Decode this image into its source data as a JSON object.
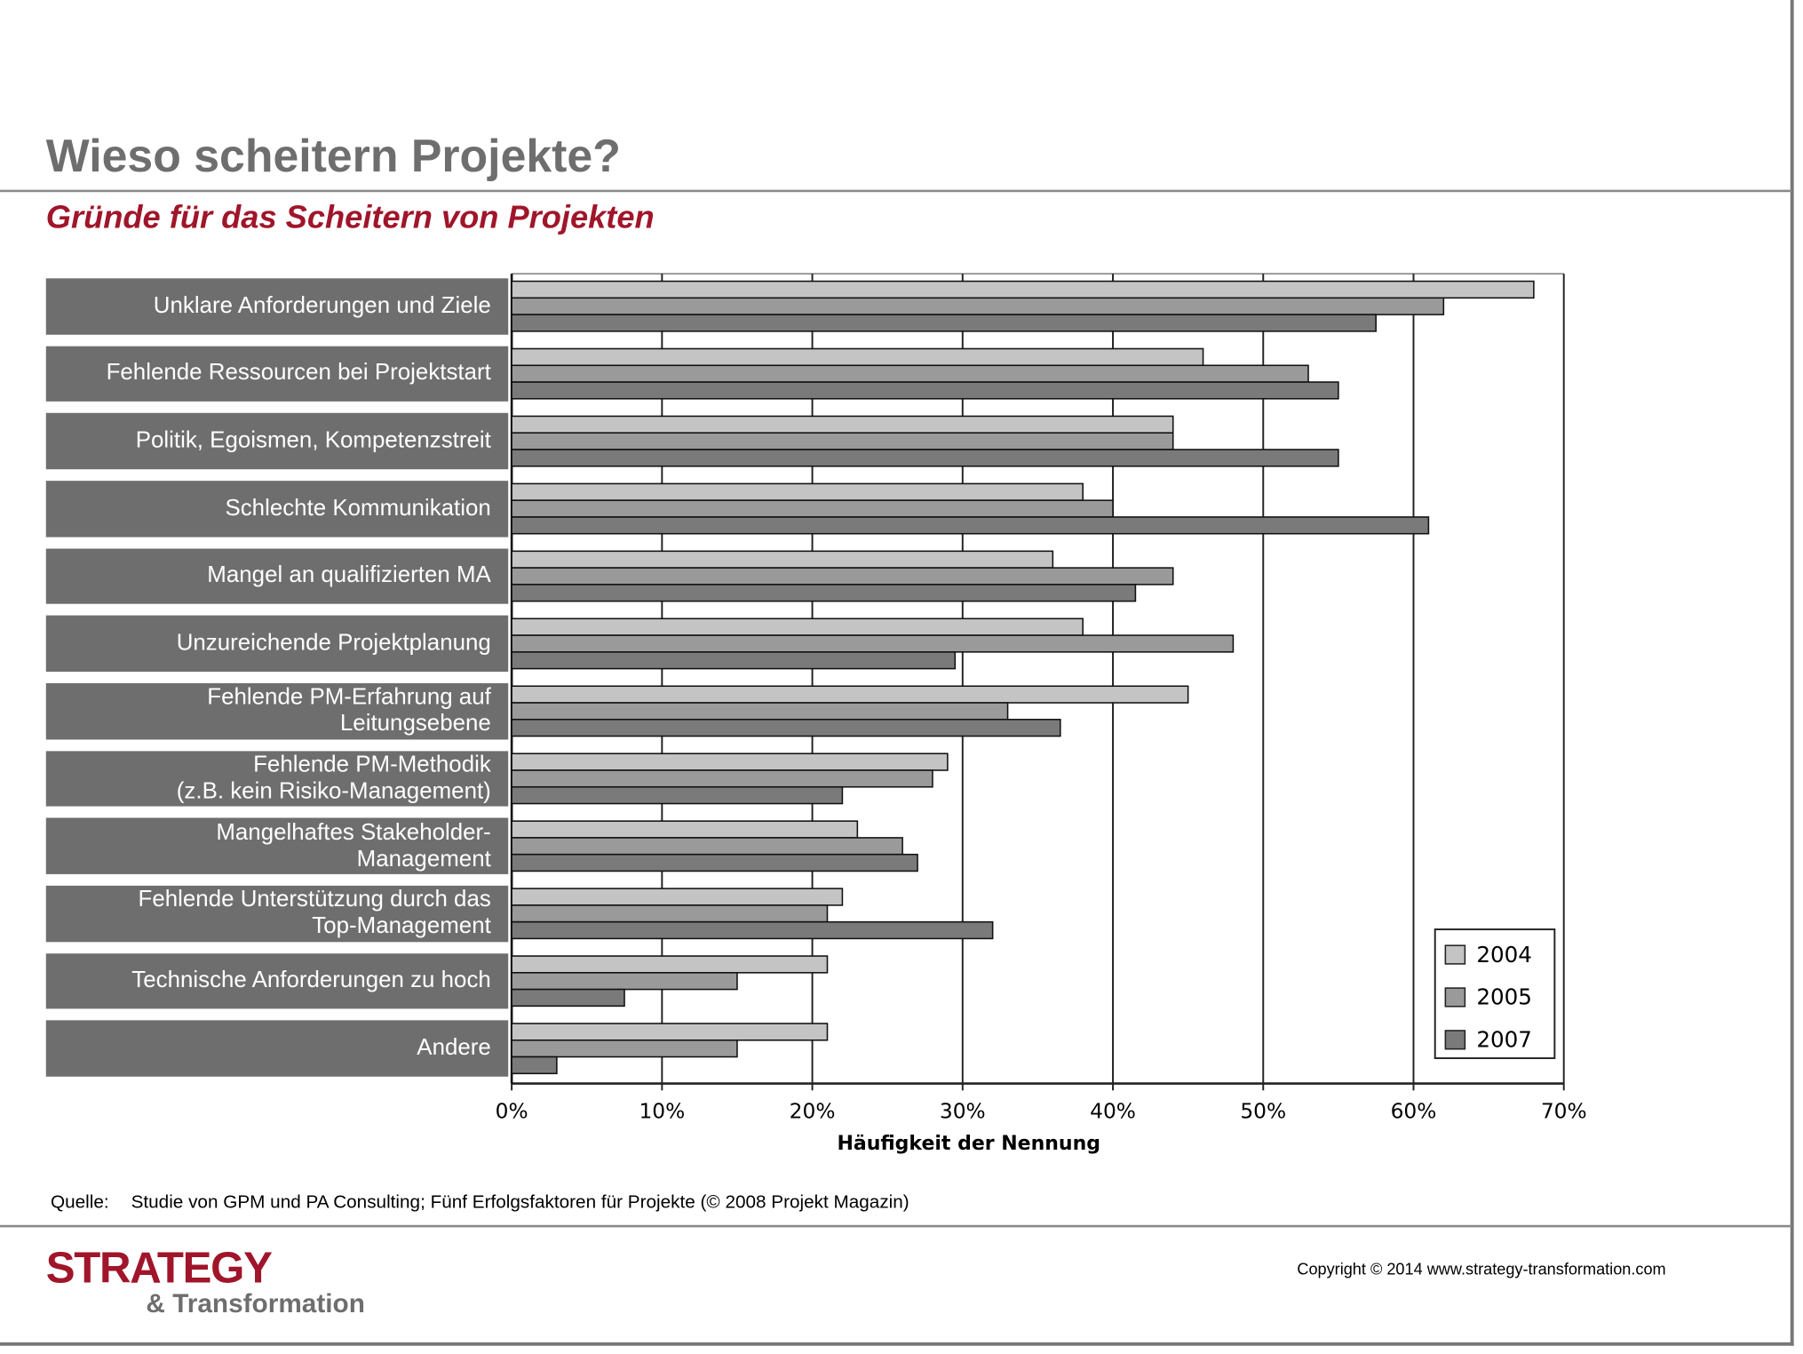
{
  "header": {
    "title": "Wieso scheitern Projekte?",
    "subtitle": "Gründe für das Scheitern von Projekten"
  },
  "chart_data": {
    "type": "bar",
    "orientation": "horizontal",
    "categories": [
      "Unklare Anforderungen und Ziele",
      "Fehlende Ressourcen bei Projektstart",
      "Politik, Egoismen, Kompetenzstreit",
      "Schlechte Kommunikation",
      "Mangel an qualifizierten MA",
      "Unzureichende Projektplanung",
      "Fehlende PM-Erfahrung auf\nLeitungsebene",
      "Fehlende PM-Methodik\n(z.B. kein Risiko-Management)",
      "Mangelhaftes Stakeholder-\nManagement",
      "Fehlende Unterstützung durch das\nTop-Management",
      "Technische Anforderungen zu hoch",
      "Andere"
    ],
    "series": [
      {
        "name": "2004",
        "color": "#c4c4c4",
        "values": [
          68,
          46,
          44,
          38,
          36,
          38,
          45,
          29,
          23,
          22,
          21,
          21
        ]
      },
      {
        "name": "2005",
        "color": "#9a9a9a",
        "values": [
          62,
          53,
          44,
          40,
          44,
          48,
          33,
          28,
          26,
          21,
          15,
          15
        ]
      },
      {
        "name": "2007",
        "color": "#7a7a7a",
        "values": [
          57.5,
          55,
          55,
          61,
          41.5,
          29.5,
          36.5,
          22,
          27,
          32,
          7.5,
          3
        ]
      }
    ],
    "xlim": [
      0,
      70
    ],
    "xticks": [
      {
        "value": 0,
        "label": "0%"
      },
      {
        "value": 10,
        "label": "10%"
      },
      {
        "value": 20,
        "label": "20%"
      },
      {
        "value": 30,
        "label": "30%"
      },
      {
        "value": 40,
        "label": "40%"
      },
      {
        "value": 50,
        "label": "50%"
      },
      {
        "value": 60,
        "label": "60%"
      },
      {
        "value": 70,
        "label": "70%"
      }
    ],
    "x_label": "Häufigkeit der Nennung",
    "grid": true,
    "legend": "lower right"
  },
  "footer": {
    "source_label": "Quelle:",
    "source": "Studie von GPM und PA Consulting; Fünf Erfolgsfaktoren für Projekte (© 2008 Projekt Magazin)",
    "logo_main": "STRATEGY",
    "logo_sub": "& Transformation",
    "copyright": "Copyright © 2014 www.strategy-transformation.com"
  }
}
